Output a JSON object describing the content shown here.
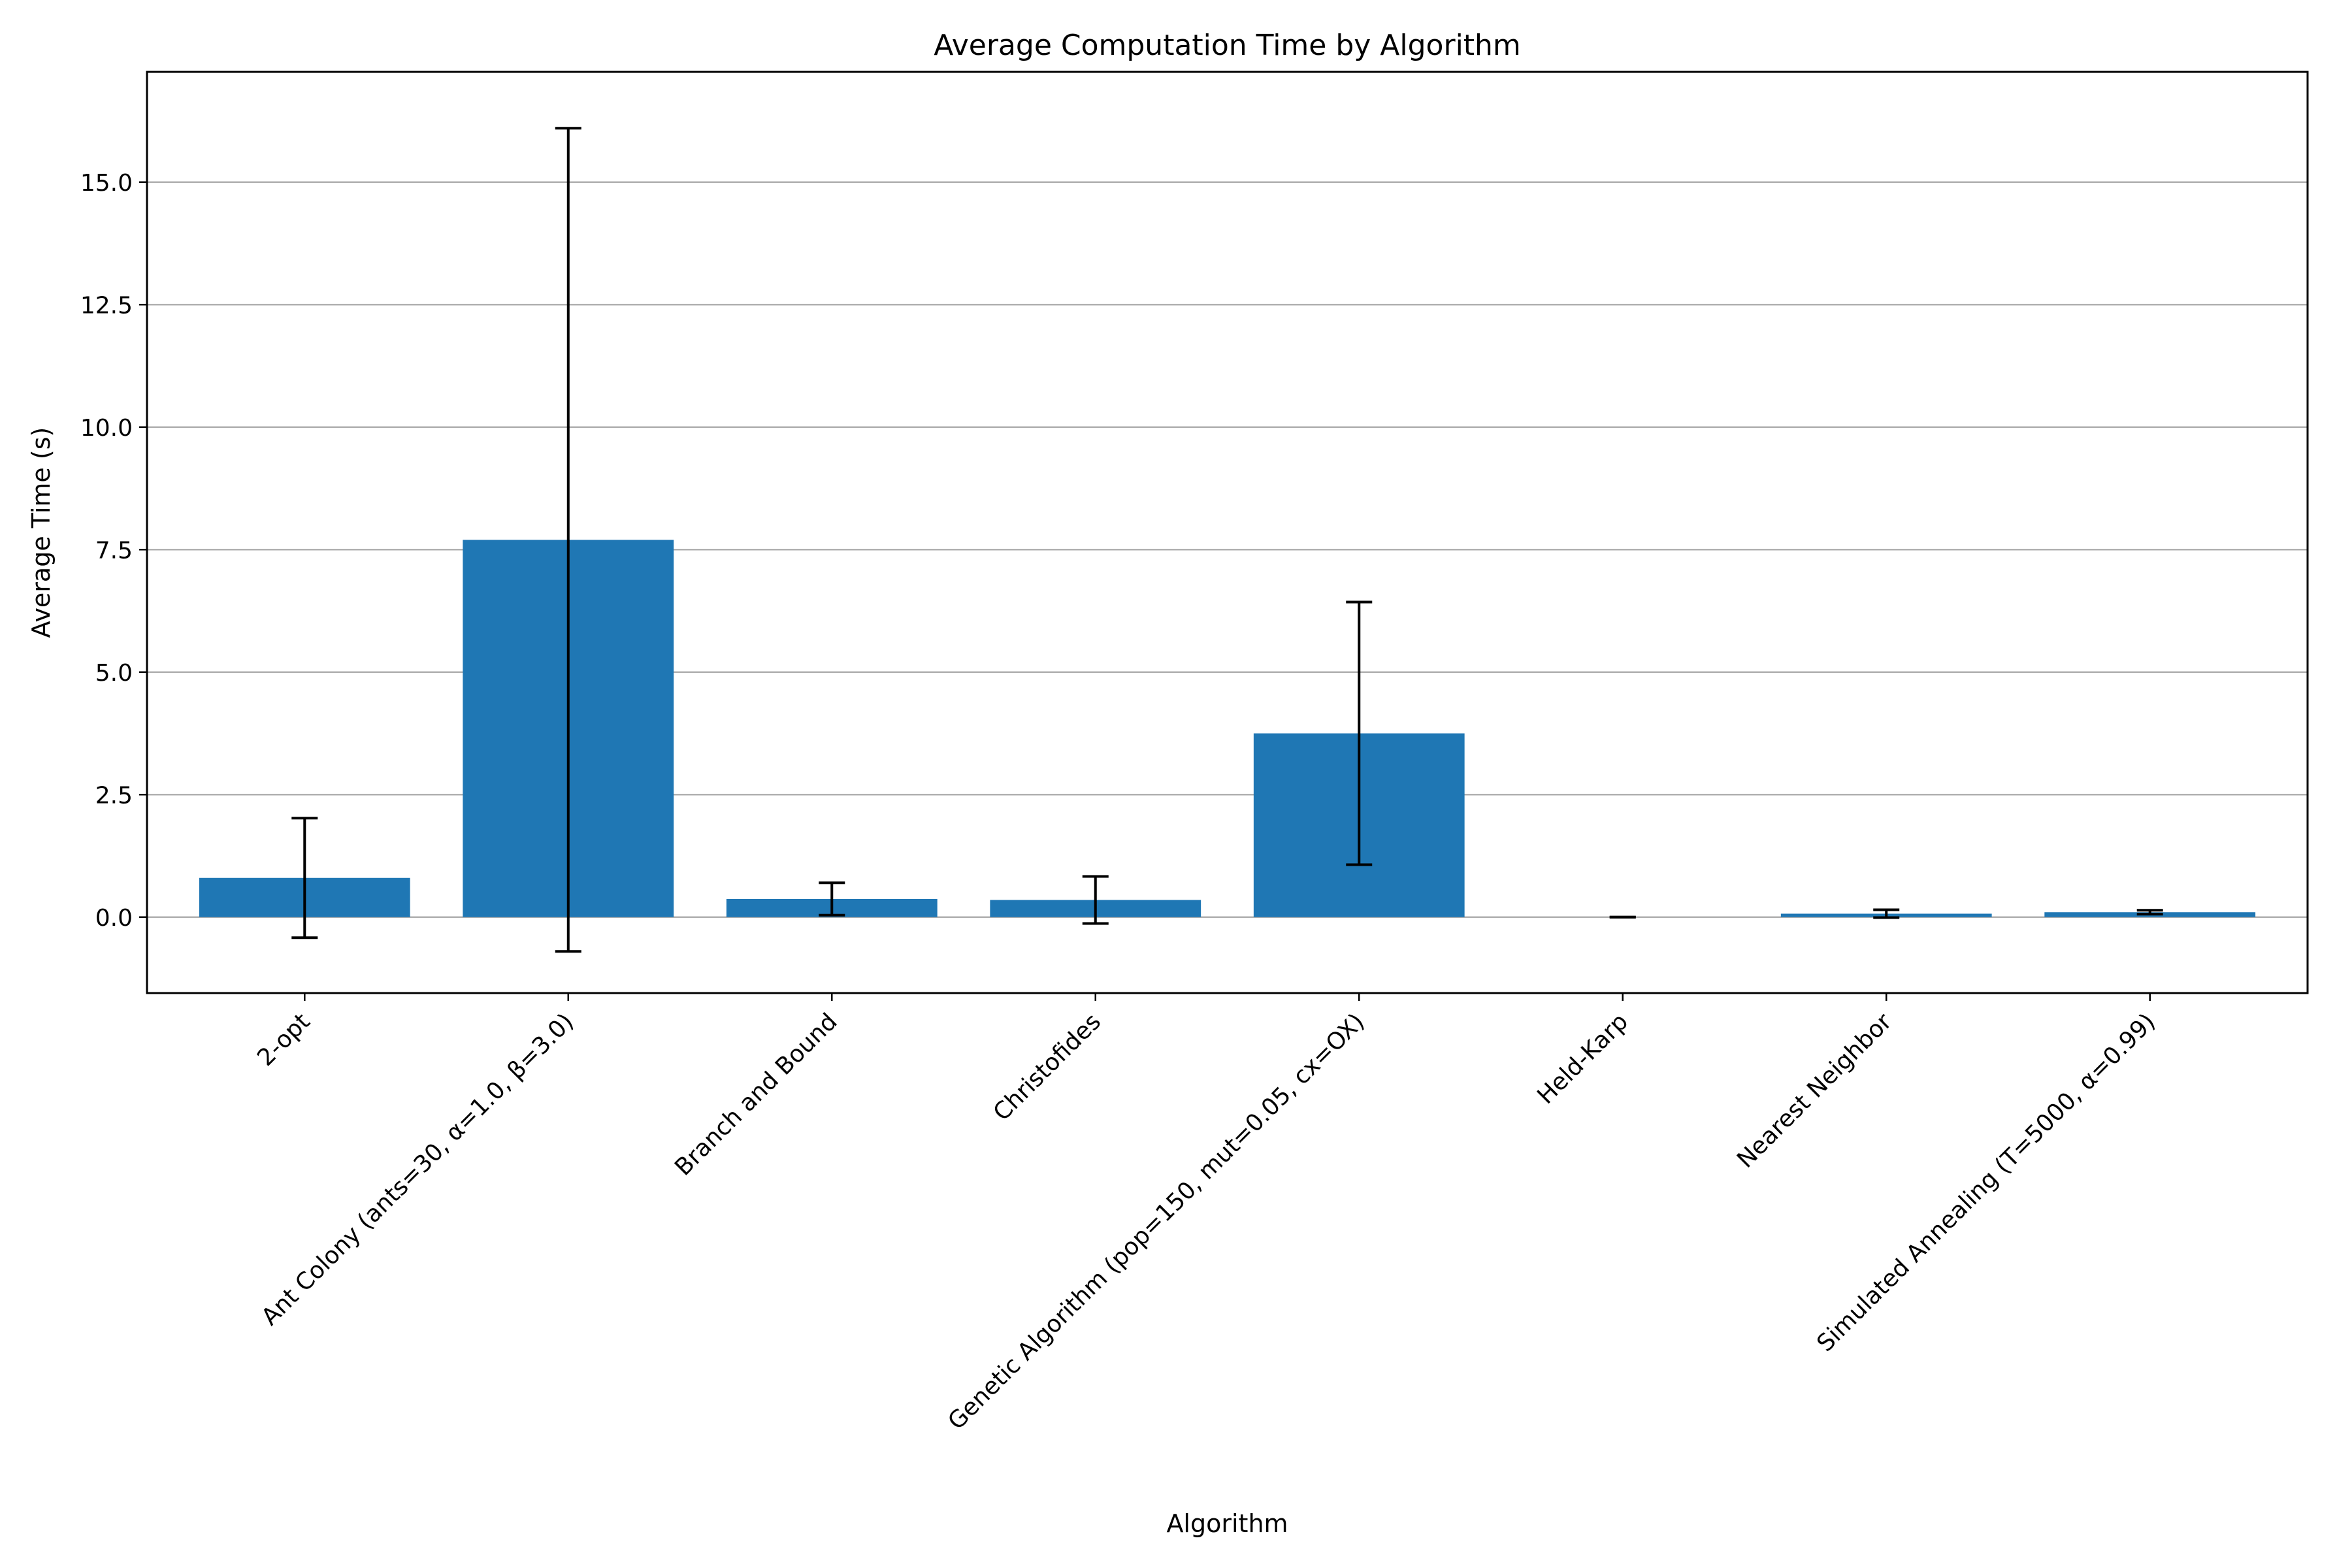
{
  "chart_data": {
    "type": "bar",
    "title": "Average Computation Time by Algorithm",
    "xlabel": "Algorithm",
    "ylabel": "Average Time (s)",
    "categories": [
      "2-opt",
      "Ant Colony (ants=30, α=1.0, β=3.0)",
      "Branch and Bound",
      "Christofides",
      "Genetic Algorithm (pop=150, mut=0.05, cx=OX)",
      "Held-Karp",
      "Nearest Neighbor",
      "Simulated Annealing (T=5000, α=0.99)"
    ],
    "values": [
      0.8,
      7.7,
      0.37,
      0.35,
      3.75,
      0.0,
      0.07,
      0.1
    ],
    "errors": [
      1.22,
      8.4,
      0.33,
      0.48,
      2.68,
      0.0,
      0.08,
      0.04
    ],
    "ylim": [
      -1.55,
      17.25
    ],
    "yticks": [
      0.0,
      2.5,
      5.0,
      7.5,
      10.0,
      12.5,
      15.0
    ],
    "ytick_labels": [
      "0.0",
      "2.5",
      "5.0",
      "7.5",
      "10.0",
      "12.5",
      "15.0"
    ],
    "grid": "y",
    "colors": {
      "bar": "#1f77b4",
      "error": "#000000",
      "grid": "#b0b0b0",
      "axis": "#000000"
    }
  }
}
